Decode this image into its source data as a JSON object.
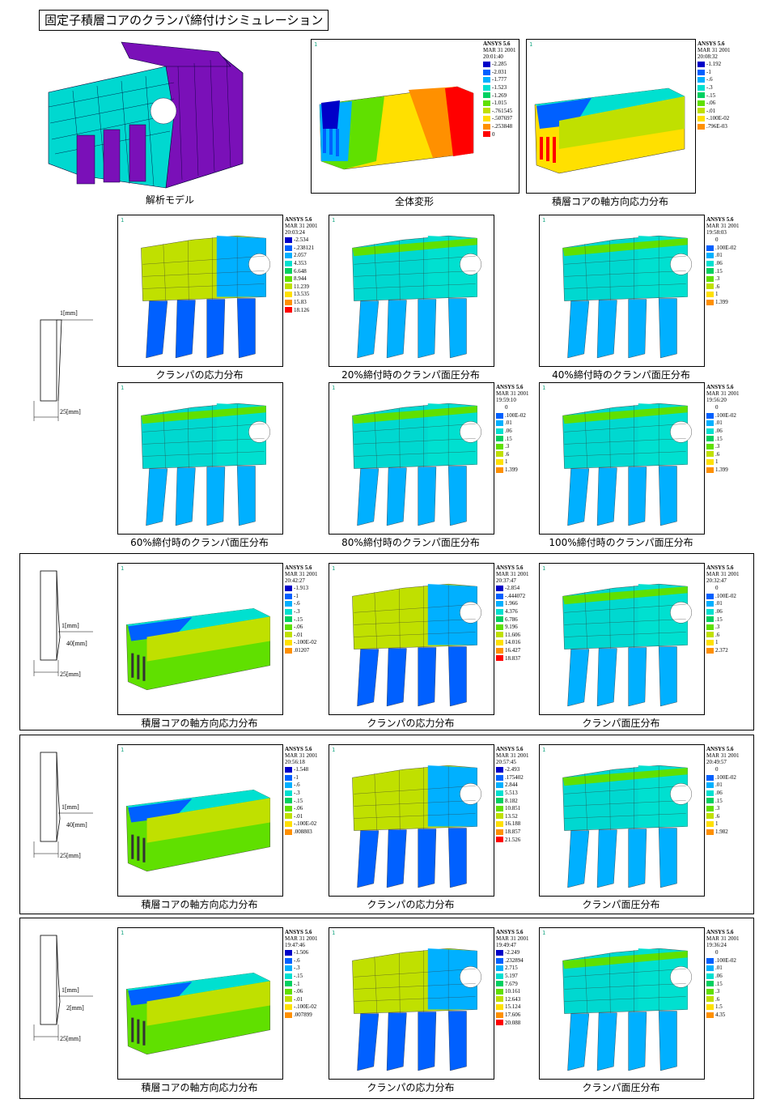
{
  "title": "固定子積層コアのクランパ締付けシミュレーション",
  "legend_colors": [
    "#0000c8",
    "#0060ff",
    "#00b0ff",
    "#00e0d0",
    "#00d060",
    "#60e000",
    "#c0e000",
    "#ffe000",
    "#ff9000",
    "#ff0000"
  ],
  "model_caption": "解析モデル",
  "row1": [
    {
      "caption": "全体変形",
      "header": [
        "ANSYS 5.6",
        "MAR 31 2001",
        "20:01:40"
      ],
      "values": [
        "-2.285",
        "-2.031",
        "-1.777",
        "-1.523",
        "-1.269",
        "-1.015",
        "-.761545",
        "-.507697",
        "-.253848",
        "0"
      ]
    },
    {
      "caption": "積層コアの軸方向応力分布",
      "header": [
        "ANSYS 5.6",
        "MAR 31 2001",
        "20:08:32"
      ],
      "values": [
        "-1.192",
        "-1",
        "-.6",
        "-.3",
        "-.15",
        "-.06",
        "-.01",
        "-.100E-02",
        ".796E-03"
      ]
    }
  ],
  "clamp_rows": [
    [
      {
        "caption": "クランパの応力分布",
        "header": [
          "ANSYS 5.6",
          "MAR 31 2001",
          "20:03:24"
        ],
        "values": [
          "-2.534",
          "-.238121",
          "2.057",
          "4.353",
          "6.648",
          "8.944",
          "11.239",
          "13.535",
          "15.83",
          "18.126"
        ]
      },
      {
        "caption": "20%締付時のクランパ面圧分布",
        "header": [],
        "values": []
      },
      {
        "caption": "40%締付時のクランパ面圧分布",
        "header": [
          "ANSYS 5.6",
          "MAR 31 2001",
          "19:58:03"
        ],
        "values": [
          "0",
          ".100E-02",
          ".01",
          ".06",
          ".15",
          ".3",
          ".6",
          "1",
          "1.399"
        ]
      }
    ],
    [
      {
        "caption": "60%締付時のクランパ面圧分布",
        "header": [],
        "values": []
      },
      {
        "caption": "80%締付時のクランパ面圧分布",
        "header": [
          "ANSYS 5.6",
          "MAR 31 2001",
          "19:59:10"
        ],
        "values": [
          "0",
          ".100E-02",
          ".01",
          ".06",
          ".15",
          ".3",
          ".6",
          "1",
          "1.399"
        ]
      },
      {
        "caption": "100%締付時のクランパ面圧分布",
        "header": [
          "ANSYS 5.6",
          "MAR 31 2001",
          "19:56:20"
        ],
        "values": [
          "0",
          ".100E-02",
          ".01",
          ".06",
          ".15",
          ".3",
          ".6",
          "1",
          "1.399"
        ]
      }
    ]
  ],
  "sections": [
    {
      "dims": [
        "1[mm]",
        "40[mm]",
        "25[mm]"
      ],
      "panels": [
        {
          "caption": "積層コアの軸方向応力分布",
          "header": [
            "ANSYS 5.6",
            "MAR 31 2001",
            "20:42:27"
          ],
          "values": [
            "-1.913",
            "-1",
            "-.6",
            "-.3",
            "-.15",
            "-.06",
            "-.01",
            "-.100E-02",
            ".01207"
          ]
        },
        {
          "caption": "クランパの応力分布",
          "header": [
            "ANSYS 5.6",
            "MAR 31 2001",
            "20:37:47"
          ],
          "values": [
            "-2.854",
            "-.444072",
            "1.966",
            "4.376",
            "6.786",
            "9.196",
            "11.606",
            "14.016",
            "16.427",
            "18.837"
          ]
        },
        {
          "caption": "クランパ面圧分布",
          "header": [
            "ANSYS 5.6",
            "MAR 31 2001",
            "20:32:47"
          ],
          "values": [
            "0",
            ".100E-02",
            ".01",
            ".06",
            ".15",
            ".3",
            ".6",
            "1",
            "2.372"
          ]
        }
      ]
    },
    {
      "dims": [
        "1[mm]",
        "40[mm]",
        "25[mm]"
      ],
      "panels": [
        {
          "caption": "積層コアの軸方向応力分布",
          "header": [
            "ANSYS 5.6",
            "MAR 31 2001",
            "20:56:18"
          ],
          "values": [
            "-1.548",
            "-1",
            "-.6",
            "-.3",
            "-.15",
            "-.06",
            "-.01",
            "-.100E-02",
            ".008803"
          ]
        },
        {
          "caption": "クランパの応力分布",
          "header": [
            "ANSYS 5.6",
            "MAR 31 2001",
            "20:57:45"
          ],
          "values": [
            "-2.493",
            ".175402",
            "2.844",
            "5.513",
            "8.182",
            "10.851",
            "13.52",
            "16.188",
            "18.857",
            "21.526"
          ]
        },
        {
          "caption": "クランパ面圧分布",
          "header": [
            "ANSYS 5.6",
            "MAR 31 2001",
            "20:49:57"
          ],
          "values": [
            "0",
            ".100E-02",
            ".01",
            ".06",
            ".15",
            ".3",
            ".6",
            "1",
            "1.982"
          ]
        }
      ]
    },
    {
      "dims": [
        "1[mm]",
        "2[mm]",
        "25[mm]"
      ],
      "panels": [
        {
          "caption": "積層コアの軸方向応力分布",
          "header": [
            "ANSYS 5.6",
            "MAR 31 2001",
            "19:47:46"
          ],
          "values": [
            "-1.506",
            "-.6",
            "-.3",
            "-.15",
            "-.1",
            "-.06",
            "-.01",
            "-.100E-02",
            ".007899"
          ]
        },
        {
          "caption": "クランパの応力分布",
          "header": [
            "ANSYS 5.6",
            "MAR 31 2001",
            "19:49:47"
          ],
          "values": [
            "-2.249",
            ".232894",
            "2.715",
            "5.197",
            "7.679",
            "10.161",
            "12.643",
            "15.124",
            "17.606",
            "20.088"
          ]
        },
        {
          "caption": "クランパ面圧分布",
          "header": [
            "ANSYS 5.6",
            "MAR 31 2001",
            "19:36:24"
          ],
          "values": [
            "0",
            ".100E-02",
            ".01",
            ".06",
            ".15",
            ".3",
            ".6",
            "1.5",
            "4.35"
          ]
        }
      ]
    }
  ],
  "top_dims": [
    "1[mm]",
    "25[mm]"
  ]
}
